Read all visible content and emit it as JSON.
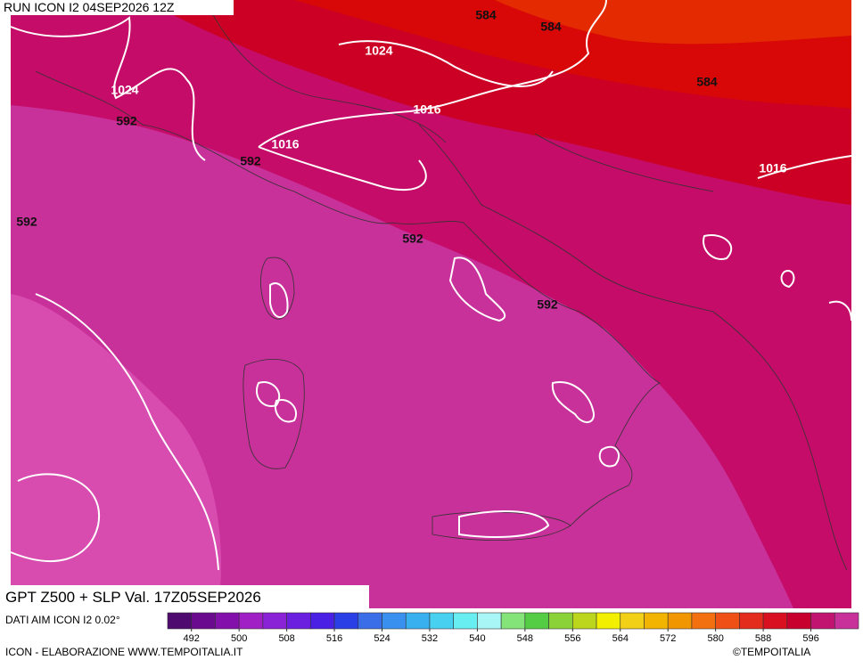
{
  "header": {
    "run": "RUN ICON I2 04SEP2026 12Z"
  },
  "map": {
    "contour_labels": [
      584,
      584,
      584,
      1024,
      1024,
      1016,
      1016,
      1016,
      592,
      592,
      592,
      592,
      592
    ]
  },
  "footer": {
    "title": "GPT Z500 + SLP Val. 17Z05SEP2026",
    "source": "DATI AIM ICON I2 0.02°",
    "credit": "ICON - ELABORAZIONE WWW.TEMPOITALIA.IT",
    "copyright": "©TEMPOITALIA"
  },
  "colorbar": {
    "lim": [
      488,
      604
    ],
    "colors": [
      "#4e0a6e",
      "#6a0a8e",
      "#8410ac",
      "#a020c6",
      "#8a22d6",
      "#6a20de",
      "#4a20e4",
      "#2a40e6",
      "#3a6ee8",
      "#3a90ee",
      "#38b0f0",
      "#48d0f0",
      "#68eef0",
      "#a8f6f6",
      "#84e47a",
      "#54cc44",
      "#8ad238",
      "#bcd61e",
      "#f2f000",
      "#f2d018",
      "#f2b400",
      "#f29600",
      "#f27010",
      "#ee5016",
      "#e42c1c",
      "#d81020",
      "#c8002e",
      "#c01470",
      "#c8309a"
    ],
    "ticks": [
      492,
      500,
      508,
      516,
      524,
      532,
      540,
      548,
      556,
      564,
      572,
      580,
      588,
      596
    ]
  }
}
